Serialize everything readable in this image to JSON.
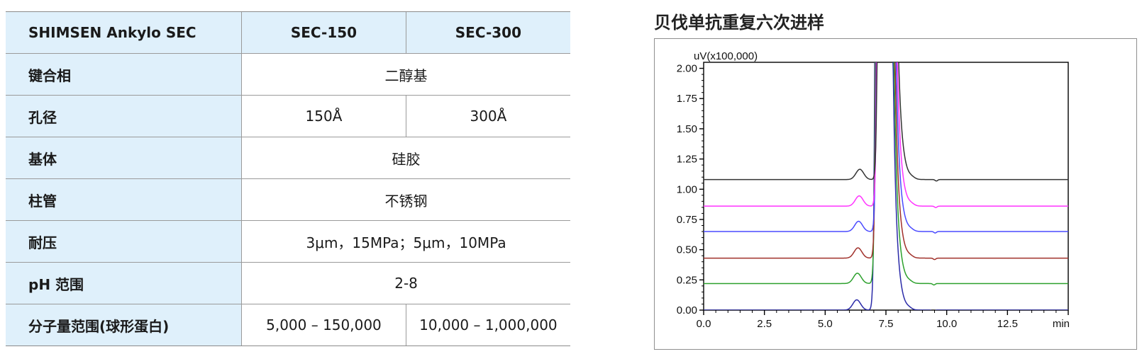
{
  "table": {
    "header": {
      "label": "SHIMSEN Ankylo SEC",
      "col1": "SEC-150",
      "col2": "SEC-300"
    },
    "rows": [
      {
        "label": "键合相",
        "value": "二醇基"
      },
      {
        "label": "孔径",
        "v1": "150Å",
        "v2": "300Å"
      },
      {
        "label": "基体",
        "value": "硅胶"
      },
      {
        "label": "柱管",
        "value": "不锈钢"
      },
      {
        "label": "耐压",
        "value": "3μm，15MPa；5μm，10MPa"
      },
      {
        "label": "pH 范围",
        "value": "2-8"
      },
      {
        "label": "分子量范围(球形蛋白)",
        "v1": "5,000 – 150,000",
        "v2": "10,000 – 1,000,000"
      }
    ]
  },
  "chart": {
    "title": "贝伐单抗重复六次进样"
  },
  "chart_data": {
    "type": "line",
    "title": "贝伐单抗重复六次进样",
    "ylabel": "uV(x100,000)",
    "xlabel": "min",
    "xlim": [
      0,
      15
    ],
    "ylim": [
      0,
      2.05
    ],
    "x_ticks": [
      "0.0",
      "2.5",
      "5.0",
      "7.5",
      "10.0",
      "12.5"
    ],
    "y_ticks": [
      "0.00",
      "0.25",
      "0.50",
      "0.75",
      "1.00",
      "1.25",
      "1.50",
      "1.75",
      "2.00"
    ],
    "grid": false,
    "series": [
      {
        "color": "#2b2ba8",
        "baseline": 0.0
      },
      {
        "color": "#2ca02c",
        "baseline": 0.22
      },
      {
        "color": "#a0302a",
        "baseline": 0.43
      },
      {
        "color": "#4a4aff",
        "baseline": 0.65
      },
      {
        "color": "#ff33ff",
        "baseline": 0.86
      },
      {
        "color": "#333333",
        "baseline": 1.08
      }
    ],
    "features": {
      "shoulder_peak": {
        "x": 6.3,
        "height": 0.08
      },
      "main_peak": {
        "x": 7.3,
        "height_off_scale": true
      },
      "dip": {
        "x": 9.45
      }
    }
  }
}
